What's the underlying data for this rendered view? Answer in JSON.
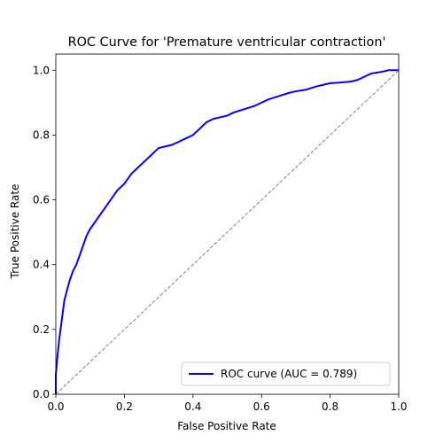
{
  "chart_data": {
    "type": "line",
    "title": "ROC Curve for 'Premature ventricular contraction'",
    "xlabel": "False Positive Rate",
    "ylabel": "True Positive Rate",
    "xlim": [
      0.0,
      1.0
    ],
    "ylim": [
      0.0,
      1.05
    ],
    "x_ticks": [
      0.0,
      0.2,
      0.4,
      0.6,
      0.8,
      1.0
    ],
    "x_tick_labels": [
      "0.0",
      "0.2",
      "0.4",
      "0.6",
      "0.8",
      "1.0"
    ],
    "y_ticks": [
      0.0,
      0.2,
      0.4,
      0.6,
      0.8,
      1.0
    ],
    "y_tick_labels": [
      "0.0",
      "0.2",
      "0.4",
      "0.6",
      "0.8",
      "1.0"
    ],
    "grid": false,
    "legend_position": "lower right",
    "series": [
      {
        "name": "ROC curve (AUC = 0.789)",
        "color": "#0000ff",
        "style": "solid",
        "x": [
          0.0,
          0.0,
          0.005,
          0.01,
          0.015,
          0.02,
          0.025,
          0.03,
          0.04,
          0.05,
          0.06,
          0.07,
          0.08,
          0.09,
          0.1,
          0.12,
          0.14,
          0.16,
          0.18,
          0.2,
          0.22,
          0.24,
          0.26,
          0.28,
          0.3,
          0.32,
          0.34,
          0.36,
          0.38,
          0.4,
          0.42,
          0.44,
          0.46,
          0.48,
          0.5,
          0.52,
          0.55,
          0.58,
          0.6,
          0.62,
          0.65,
          0.68,
          0.7,
          0.73,
          0.76,
          0.78,
          0.8,
          0.83,
          0.86,
          0.88,
          0.9,
          0.92,
          0.95,
          0.97,
          1.0
        ],
        "y": [
          0.0,
          0.06,
          0.12,
          0.17,
          0.21,
          0.25,
          0.29,
          0.31,
          0.35,
          0.38,
          0.4,
          0.43,
          0.46,
          0.49,
          0.51,
          0.54,
          0.57,
          0.6,
          0.63,
          0.65,
          0.68,
          0.7,
          0.72,
          0.74,
          0.76,
          0.765,
          0.77,
          0.78,
          0.79,
          0.8,
          0.82,
          0.84,
          0.85,
          0.855,
          0.86,
          0.87,
          0.88,
          0.89,
          0.9,
          0.91,
          0.92,
          0.93,
          0.935,
          0.94,
          0.95,
          0.955,
          0.96,
          0.962,
          0.965,
          0.97,
          0.98,
          0.99,
          0.995,
          1.0,
          1.0
        ]
      },
      {
        "name": "",
        "color": "#808080",
        "style": "dashed",
        "x": [
          0.0,
          1.0
        ],
        "y": [
          0.0,
          1.0
        ]
      }
    ],
    "legend": [
      {
        "label": "ROC curve (AUC = 0.789)",
        "color": "#0000ff"
      }
    ]
  }
}
